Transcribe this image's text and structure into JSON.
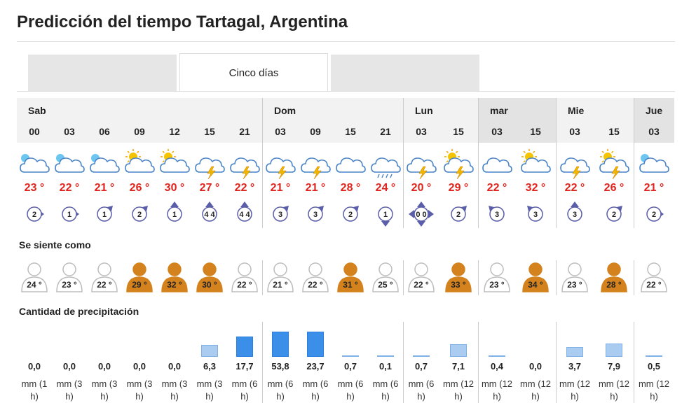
{
  "page": {
    "title": "Predicción del tiempo Tartagal, Argentina",
    "tabs": [
      {
        "label": "",
        "active": false
      },
      {
        "label": "Cinco días",
        "active": true
      },
      {
        "label": "",
        "active": false
      }
    ]
  },
  "days": [
    {
      "name": "Sab",
      "shaded": false
    },
    {
      "name": "Dom",
      "shaded": false
    },
    {
      "name": "Lun",
      "shaded": false
    },
    {
      "name": "mar",
      "shaded": true
    },
    {
      "name": "Mie",
      "shaded": false
    },
    {
      "name": "Jue",
      "shaded": true
    }
  ],
  "colors": {
    "temp": "#e0231c",
    "bar_fill_heavy": "#3b8fe8",
    "bar_fill_light": "#a9ccf0",
    "cloud_stroke": "#4a84c8",
    "feels_warm": "#d4821d",
    "feels_mild": "#ffffff"
  },
  "forecast": [
    {
      "hour": "00",
      "icon": "night-partly-cloudy-icon",
      "temp": "23 °",
      "wind_speed": "2",
      "wind_dir": "right",
      "feels": "24 °",
      "warm": false,
      "precip": "0,0",
      "precip_level": 0,
      "unit": "mm (1 h)"
    },
    {
      "hour": "03",
      "icon": "night-partly-cloudy-icon",
      "temp": "22 °",
      "wind_speed": "1",
      "wind_dir": "right",
      "feels": "23 °",
      "warm": false,
      "precip": "0,0",
      "precip_level": 0,
      "unit": "mm (3 h)"
    },
    {
      "hour": "06",
      "icon": "night-partly-cloudy-icon",
      "temp": "21 °",
      "wind_speed": "1",
      "wind_dir": "up-right",
      "feels": "22 °",
      "warm": false,
      "precip": "0,0",
      "precip_level": 0,
      "unit": "mm (3 h)"
    },
    {
      "hour": "09",
      "icon": "sun-cloud-icon",
      "temp": "26 °",
      "wind_speed": "2",
      "wind_dir": "up-right",
      "feels": "29 °",
      "warm": true,
      "precip": "0,0",
      "precip_level": 0,
      "unit": "mm (3 h)"
    },
    {
      "hour": "12",
      "icon": "sun-cloud-icon",
      "temp": "30 °",
      "wind_speed": "1",
      "wind_dir": "up",
      "feels": "32 °",
      "warm": true,
      "precip": "0,0",
      "precip_level": 0,
      "unit": "mm (3 h)"
    },
    {
      "hour": "15",
      "icon": "thunderstorm-icon",
      "temp": "27 °",
      "wind_speed": "4 4",
      "wind_dir": "up",
      "feels": "30 °",
      "warm": true,
      "precip": "6,3",
      "precip_level": 6.3,
      "unit": "mm (3 h)"
    },
    {
      "hour": "21",
      "icon": "thunderstorm-icon",
      "temp": "22 °",
      "wind_speed": "4 4",
      "wind_dir": "up",
      "feels": "22 °",
      "warm": false,
      "precip": "17,7",
      "precip_level": 17.7,
      "unit": "mm (6 h)"
    },
    {
      "hour": "03",
      "icon": "thunderstorm-icon",
      "temp": "21 °",
      "wind_speed": "3",
      "wind_dir": "up-right",
      "feels": "21 °",
      "warm": false,
      "precip": "53,8",
      "precip_level": 53.8,
      "unit": "mm (6 h)"
    },
    {
      "hour": "09",
      "icon": "thunderstorm-icon",
      "temp": "21 °",
      "wind_speed": "3",
      "wind_dir": "up-right",
      "feels": "22 °",
      "warm": false,
      "precip": "23,7",
      "precip_level": 23.7,
      "unit": "mm (6 h)"
    },
    {
      "hour": "15",
      "icon": "cloudy-icon",
      "temp": "28 °",
      "wind_speed": "2",
      "wind_dir": "up-right",
      "feels": "31 °",
      "warm": true,
      "precip": "0,7",
      "precip_level": 0.7,
      "unit": "mm (6 h)"
    },
    {
      "hour": "21",
      "icon": "rain-icon",
      "temp": "24 °",
      "wind_speed": "1",
      "wind_dir": "down",
      "feels": "25 °",
      "warm": false,
      "precip": "0,1",
      "precip_level": 0.1,
      "unit": "mm (6 h)"
    },
    {
      "hour": "03",
      "icon": "thunderstorm-icon",
      "temp": "20 °",
      "wind_speed": "0 0",
      "wind_dir": "all",
      "feels": "22 °",
      "warm": false,
      "precip": "0,7",
      "precip_level": 0.7,
      "unit": "mm (6 h)"
    },
    {
      "hour": "15",
      "icon": "sun-thunderstorm-icon",
      "temp": "29 °",
      "wind_speed": "2",
      "wind_dir": "up-right",
      "feels": "33 °",
      "warm": true,
      "precip": "7,1",
      "precip_level": 7.1,
      "unit": "mm (12 h)"
    },
    {
      "hour": "03",
      "icon": "cloudy-icon",
      "temp": "22 °",
      "wind_speed": "3",
      "wind_dir": "up-left",
      "feels": "23 °",
      "warm": false,
      "precip": "0,4",
      "precip_level": 0.4,
      "unit": "mm (12 h)"
    },
    {
      "hour": "15",
      "icon": "sun-cloud-icon",
      "temp": "32 °",
      "wind_speed": "3",
      "wind_dir": "up-left",
      "feels": "34 °",
      "warm": true,
      "precip": "0,0",
      "precip_level": 0,
      "unit": "mm (12 h)"
    },
    {
      "hour": "03",
      "icon": "thunderstorm-icon",
      "temp": "22 °",
      "wind_speed": "3",
      "wind_dir": "up",
      "feels": "23 °",
      "warm": false,
      "precip": "3,7",
      "precip_level": 3.7,
      "unit": "mm (12 h)"
    },
    {
      "hour": "15",
      "icon": "sun-thunderstorm-icon",
      "temp": "26 °",
      "wind_speed": "2",
      "wind_dir": "up-right",
      "feels": "28 °",
      "warm": true,
      "precip": "7,9",
      "precip_level": 7.9,
      "unit": "mm (12 h)"
    },
    {
      "hour": "03",
      "icon": "night-partly-cloudy-icon",
      "temp": "21 °",
      "wind_speed": "2",
      "wind_dir": "right",
      "feels": "22 °",
      "warm": false,
      "precip": "0,5",
      "precip_level": 0.5,
      "unit": "mm (12 h)"
    }
  ],
  "sections": {
    "feels_like": "Se siente como",
    "precipitation": "Cantidad de precipitación"
  }
}
